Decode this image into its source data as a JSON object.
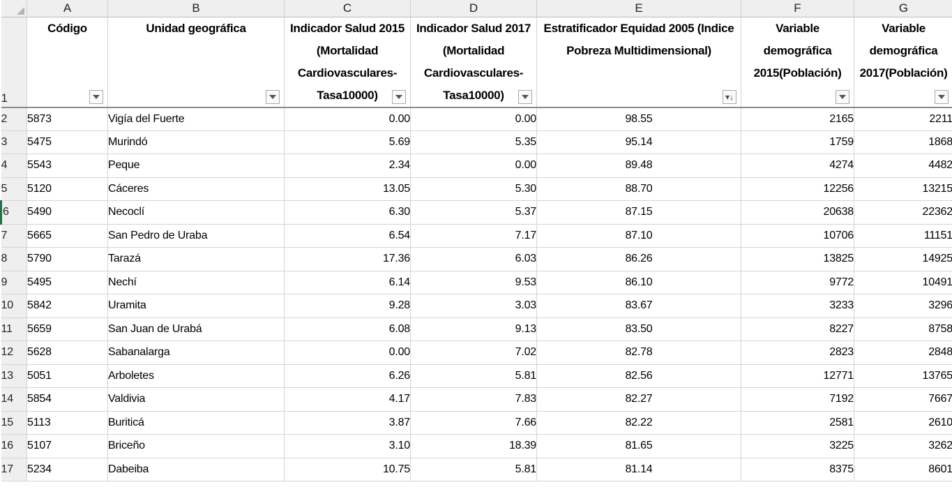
{
  "columns": [
    "A",
    "B",
    "C",
    "D",
    "E",
    "F",
    "G"
  ],
  "header_row_number": "1",
  "headers": {
    "A": "Código",
    "B": "Unidad geográfica",
    "C": "Indicador Salud 2015 (Mortalidad Cardiovasculares-Tasa10000)",
    "D": "Indicador Salud 2017 (Mortalidad Cardiovasculares-Tasa10000)",
    "E": "Estratificador Equidad 2005 (Indice Pobreza Multidimensional)",
    "F": "Variable demográfica 2015(Población)",
    "G": "Variable demográfica 2017(Población)"
  },
  "filter_icons": {
    "A": "filter-dropdown-icon",
    "B": "filter-dropdown-icon",
    "C": "filter-dropdown-icon",
    "D": "filter-dropdown-icon",
    "E": "sort-descending-filter-icon",
    "F": "filter-dropdown-icon",
    "G": "filter-dropdown-icon"
  },
  "accent_color": "#217346",
  "active_row": "6",
  "rows": [
    {
      "n": "2",
      "codigo": "5873",
      "unidad": "Vigía del Fuerte",
      "c": "0.00",
      "d": "0.00",
      "e": "98.55",
      "f": "2165",
      "g": "2211"
    },
    {
      "n": "3",
      "codigo": "5475",
      "unidad": "Murindó",
      "c": "5.69",
      "d": "5.35",
      "e": "95.14",
      "f": "1759",
      "g": "1868"
    },
    {
      "n": "4",
      "codigo": "5543",
      "unidad": "Peque",
      "c": "2.34",
      "d": "0.00",
      "e": "89.48",
      "f": "4274",
      "g": "4482"
    },
    {
      "n": "5",
      "codigo": "5120",
      "unidad": "Cáceres",
      "c": "13.05",
      "d": "5.30",
      "e": "88.70",
      "f": "12256",
      "g": "13215"
    },
    {
      "n": "6",
      "codigo": "5490",
      "unidad": "Necoclí",
      "c": "6.30",
      "d": "5.37",
      "e": "87.15",
      "f": "20638",
      "g": "22362"
    },
    {
      "n": "7",
      "codigo": "5665",
      "unidad": "San Pedro de Uraba",
      "c": "6.54",
      "d": "7.17",
      "e": "87.10",
      "f": "10706",
      "g": "11151"
    },
    {
      "n": "8",
      "codigo": "5790",
      "unidad": "Tarazá",
      "c": "17.36",
      "d": "6.03",
      "e": "86.26",
      "f": "13825",
      "g": "14925"
    },
    {
      "n": "9",
      "codigo": "5495",
      "unidad": "Nechí",
      "c": "6.14",
      "d": "9.53",
      "e": "86.10",
      "f": "9772",
      "g": "10491"
    },
    {
      "n": "10",
      "codigo": "5842",
      "unidad": "Uramita",
      "c": "9.28",
      "d": "3.03",
      "e": "83.67",
      "f": "3233",
      "g": "3296"
    },
    {
      "n": "11",
      "codigo": "5659",
      "unidad": "San Juan de Urabá",
      "c": "6.08",
      "d": "9.13",
      "e": "83.50",
      "f": "8227",
      "g": "8758"
    },
    {
      "n": "12",
      "codigo": "5628",
      "unidad": "Sabanalarga",
      "c": "0.00",
      "d": "7.02",
      "e": "82.78",
      "f": "2823",
      "g": "2848"
    },
    {
      "n": "13",
      "codigo": "5051",
      "unidad": "Arboletes",
      "c": "6.26",
      "d": "5.81",
      "e": "82.56",
      "f": "12771",
      "g": "13765"
    },
    {
      "n": "14",
      "codigo": "5854",
      "unidad": "Valdivia",
      "c": "4.17",
      "d": "7.83",
      "e": "82.27",
      "f": "7192",
      "g": "7667"
    },
    {
      "n": "15",
      "codigo": "5113",
      "unidad": "Buriticá",
      "c": "3.87",
      "d": "7.66",
      "e": "82.22",
      "f": "2581",
      "g": "2610"
    },
    {
      "n": "16",
      "codigo": "5107",
      "unidad": "Briceño",
      "c": "3.10",
      "d": "18.39",
      "e": "81.65",
      "f": "3225",
      "g": "3262"
    },
    {
      "n": "17",
      "codigo": "5234",
      "unidad": "Dabeiba",
      "c": "10.75",
      "d": "5.81",
      "e": "81.14",
      "f": "8375",
      "g": "8601"
    }
  ]
}
